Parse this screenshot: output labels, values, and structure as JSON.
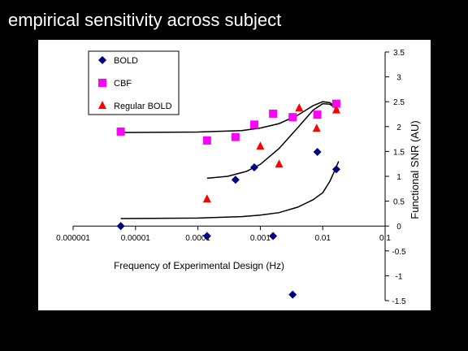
{
  "slide": {
    "title": "empirical sensitivity across subject"
  },
  "chart_data": {
    "type": "scatter",
    "title": "",
    "xlabel": "Frequency of Experimental Design (Hz)",
    "ylabel": "Functional SNR (AU)",
    "x_scale": "log",
    "xlim": [
      1e-06,
      0.1
    ],
    "ylim": [
      -1.5,
      3.5
    ],
    "x_tick_labels": [
      "0.000001",
      "0.00001",
      "0.0001",
      "0.001",
      "0.01",
      "0.1"
    ],
    "y_tick_labels": [
      "3.5",
      "3",
      "2.5",
      "2",
      "1.5",
      "1",
      "0.5",
      "0",
      "-0.5",
      "-1",
      "-1.5"
    ],
    "grid": false,
    "legend_position": "top-left",
    "series": [
      {
        "name": "BOLD",
        "marker": "diamond",
        "color": "#000080",
        "points": [
          {
            "x": 5.8e-06,
            "y": 0.0
          },
          {
            "x": 0.00014,
            "y": -0.2
          },
          {
            "x": 0.0004,
            "y": 0.93
          },
          {
            "x": 0.0008,
            "y": 1.18
          },
          {
            "x": 0.0016,
            "y": -0.2
          },
          {
            "x": 0.0033,
            "y": -1.38
          },
          {
            "x": 0.0082,
            "y": 1.49
          },
          {
            "x": 0.0165,
            "y": 1.14
          }
        ]
      },
      {
        "name": "CBF",
        "marker": "square",
        "color": "#FF00FF",
        "points": [
          {
            "x": 5.8e-06,
            "y": 1.9
          },
          {
            "x": 0.00014,
            "y": 1.72
          },
          {
            "x": 0.0004,
            "y": 1.79
          },
          {
            "x": 0.0008,
            "y": 2.04
          },
          {
            "x": 0.0016,
            "y": 2.26
          },
          {
            "x": 0.0033,
            "y": 2.19
          },
          {
            "x": 0.0082,
            "y": 2.24
          },
          {
            "x": 0.0165,
            "y": 2.46
          }
        ]
      },
      {
        "name": "Regular BOLD",
        "marker": "triangle",
        "color": "#FF0000",
        "points": [
          {
            "x": 0.00014,
            "y": 0.54
          },
          {
            "x": 0.001,
            "y": 1.6
          },
          {
            "x": 0.002,
            "y": 1.24
          },
          {
            "x": 0.0042,
            "y": 2.37
          },
          {
            "x": 0.008,
            "y": 1.96
          },
          {
            "x": 0.0165,
            "y": 2.33
          }
        ]
      }
    ],
    "trendlines": [
      {
        "color": "#000000",
        "points": [
          [
            5.8e-06,
            0.15
          ],
          [
            0.0001,
            0.16
          ],
          [
            0.0005,
            0.19
          ],
          [
            0.001,
            0.22
          ],
          [
            0.002,
            0.27
          ],
          [
            0.004,
            0.38
          ],
          [
            0.007,
            0.53
          ],
          [
            0.01,
            0.67
          ],
          [
            0.013,
            0.9
          ],
          [
            0.016,
            1.15
          ],
          [
            0.018,
            1.3
          ]
        ]
      },
      {
        "color": "#000000",
        "points": [
          [
            0.00014,
            0.96
          ],
          [
            0.0003,
            1.0
          ],
          [
            0.0006,
            1.1
          ],
          [
            0.001,
            1.24
          ],
          [
            0.002,
            1.56
          ],
          [
            0.004,
            1.98
          ],
          [
            0.007,
            2.33
          ],
          [
            0.01,
            2.46
          ],
          [
            0.013,
            2.45
          ],
          [
            0.016,
            2.37
          ],
          [
            0.018,
            2.3
          ]
        ]
      },
      {
        "color": "#000000",
        "points": [
          [
            5.8e-06,
            1.88
          ],
          [
            0.0001,
            1.89
          ],
          [
            0.0005,
            1.92
          ],
          [
            0.001,
            1.97
          ],
          [
            0.002,
            2.06
          ],
          [
            0.004,
            2.23
          ],
          [
            0.007,
            2.42
          ],
          [
            0.01,
            2.5
          ],
          [
            0.013,
            2.48
          ],
          [
            0.016,
            2.4
          ],
          [
            0.018,
            2.33
          ]
        ]
      }
    ]
  }
}
